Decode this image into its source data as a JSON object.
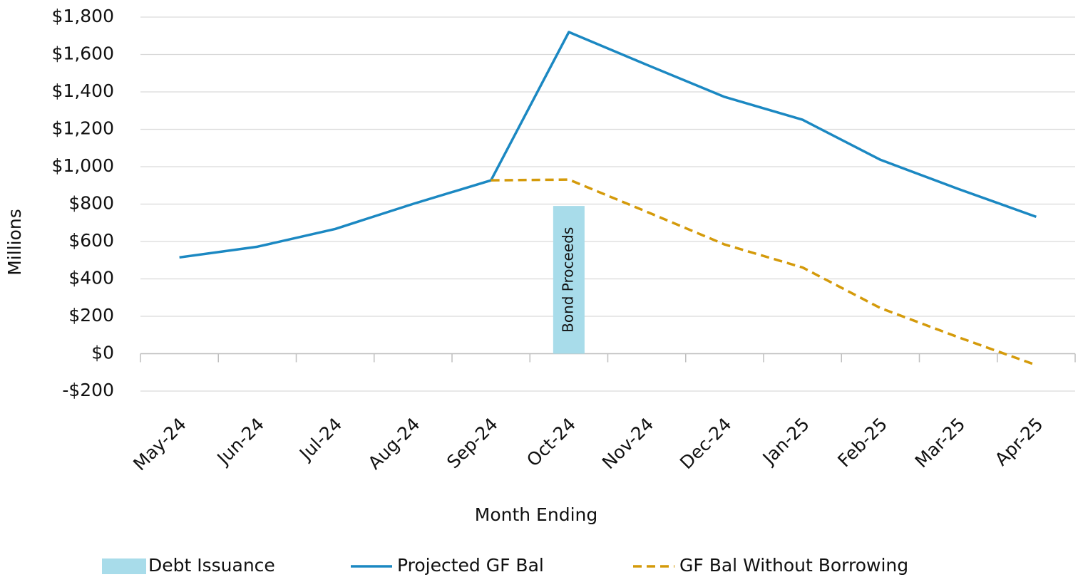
{
  "chart_data": {
    "type": "line",
    "x_label": "Month Ending",
    "y_label": "Millions",
    "categories": [
      "May-24",
      "Jun-24",
      "Jul-24",
      "Aug-24",
      "Sep-24",
      "Oct-24",
      "Nov-24",
      "Dec-24",
      "Jan-25",
      "Feb-25",
      "Mar-25",
      "Apr-25"
    ],
    "series": [
      {
        "name": "Debt Issuance",
        "type": "bar",
        "color": "#a8dcea",
        "values": [
          null,
          null,
          null,
          null,
          null,
          790,
          null,
          null,
          null,
          null,
          null,
          null
        ]
      },
      {
        "name": "Projected GF Bal",
        "type": "line",
        "color": "#1b88c2",
        "dashed": false,
        "values": [
          515,
          572,
          667,
          801,
          927,
          1720,
          1545,
          1373,
          1251,
          1037,
          881,
          732
        ]
      },
      {
        "name": "GF Bal Without Borrowing",
        "type": "line",
        "color": "#d49a0a",
        "dashed": true,
        "values": [
          null,
          null,
          null,
          null,
          927,
          931,
          759,
          584,
          461,
          244,
          88,
          -61
        ]
      }
    ],
    "annotation": "Bond Proceeds",
    "ylim": [
      -200,
      1800
    ],
    "yticks": [
      {
        "value": -200,
        "label": "-$200"
      },
      {
        "value": 0,
        "label": "$0"
      },
      {
        "value": 200,
        "label": "$200"
      },
      {
        "value": 400,
        "label": "$400"
      },
      {
        "value": 600,
        "label": "$600"
      },
      {
        "value": 800,
        "label": "$800"
      },
      {
        "value": 1000,
        "label": "$1,000"
      },
      {
        "value": 1200,
        "label": "$1,200"
      },
      {
        "value": 1400,
        "label": "$1,400"
      },
      {
        "value": 1600,
        "label": "$1,600"
      },
      {
        "value": 1800,
        "label": "$1,800"
      }
    ],
    "grid": true,
    "legend": "bottom"
  }
}
